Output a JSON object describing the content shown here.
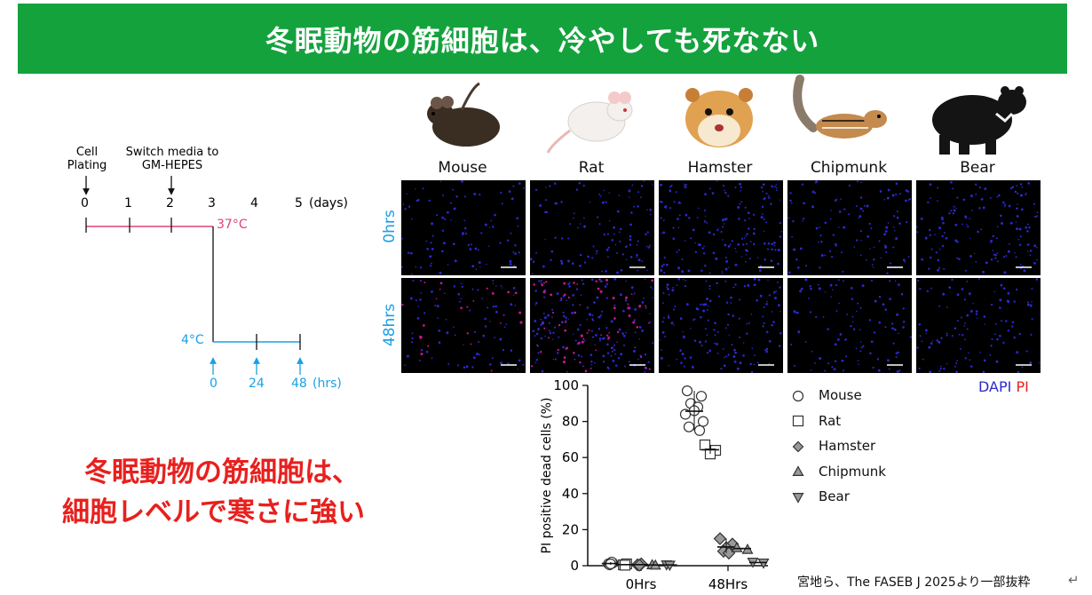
{
  "title": "冬眠動物の筋細胞は、冷やしても死なない",
  "timeline": {
    "cell_plating": [
      "Cell",
      "Plating"
    ],
    "switch_media": [
      "Switch media to",
      "GM-HEPES"
    ],
    "day_ticks": [
      "0",
      "1",
      "2",
      "3",
      "4",
      "5"
    ],
    "days_unit": "(days)",
    "temp_37": "37°C",
    "temp_4": "4°C",
    "hr_ticks": [
      "0",
      "24",
      "48"
    ],
    "hrs_unit": "(hrs)",
    "colors": {
      "warm": "#e0407f",
      "cold": "#1aa0e6"
    }
  },
  "animals": [
    "Mouse",
    "Rat",
    "Hamster",
    "Chipmunk",
    "Bear"
  ],
  "animal_icons": [
    "mouse-illustration",
    "rat-illustration",
    "hamster-illustration",
    "chipmunk-illustration",
    "bear-illustration"
  ],
  "micrograph_rows": [
    "0hrs",
    "48hrs"
  ],
  "stain": {
    "dapi": "DAPI",
    "pi": "PI",
    "dapi_color": "#2a2ad0",
    "pi_color": "#e8201d"
  },
  "conclusion": [
    "冬眠動物の筋細胞は、",
    "細胞レベルで寒さに強い"
  ],
  "citation": "宮地ら、The FASEB J 2025より一部抜粋",
  "chart_data": {
    "type": "scatter",
    "ylabel": "PI positive dead cells (%)",
    "ylim": [
      0,
      100
    ],
    "yticks": [
      0,
      20,
      40,
      60,
      80,
      100
    ],
    "categories": [
      "0Hrs",
      "48Hrs"
    ],
    "series": [
      {
        "name": "Mouse",
        "marker": "circle",
        "values": [
          [
            1,
            1.5,
            0.5,
            2,
            1
          ],
          [
            97,
            94,
            90,
            88,
            86,
            84,
            80,
            77,
            75
          ]
        ]
      },
      {
        "name": "Rat",
        "marker": "square",
        "values": [
          [
            0.5,
            1,
            0.3
          ],
          [
            67,
            64,
            62
          ]
        ]
      },
      {
        "name": "Hamster",
        "marker": "diamond",
        "values": [
          [
            0.5,
            1,
            0.3
          ],
          [
            15,
            12,
            10,
            8,
            7
          ]
        ]
      },
      {
        "name": "Chipmunk",
        "marker": "triangle-up",
        "values": [
          [
            0.5,
            0.3
          ],
          [
            10,
            9
          ]
        ]
      },
      {
        "name": "Bear",
        "marker": "triangle-down",
        "values": [
          [
            0.5,
            0.3
          ],
          [
            2,
            1.5
          ]
        ]
      }
    ]
  }
}
